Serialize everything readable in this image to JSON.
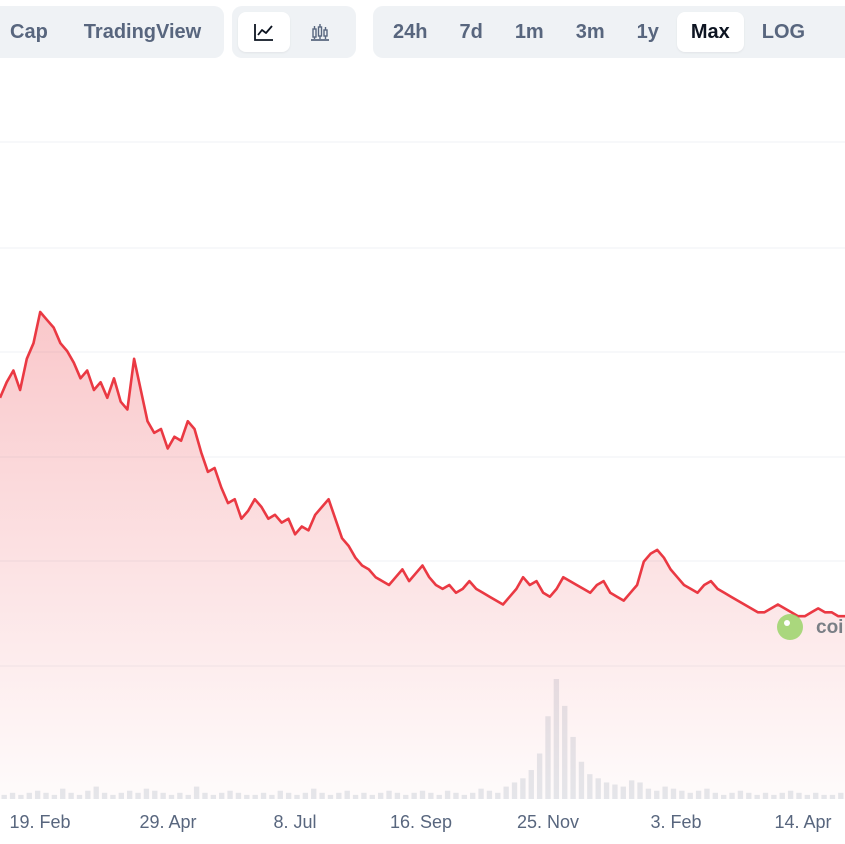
{
  "toolbar": {
    "chart_types": [
      "Cap",
      "TradingView"
    ],
    "view_icons": [
      {
        "icon": "line-chart-icon",
        "selected": true
      },
      {
        "icon": "candlestick-chart-icon",
        "selected": false
      }
    ],
    "ranges": [
      {
        "label": "24h",
        "selected": false
      },
      {
        "label": "7d",
        "selected": false
      },
      {
        "label": "1m",
        "selected": false
      },
      {
        "label": "3m",
        "selected": false
      },
      {
        "label": "1y",
        "selected": false
      },
      {
        "label": "Max",
        "selected": true
      },
      {
        "label": "LOG",
        "selected": false
      }
    ]
  },
  "watermark": {
    "text": "coi"
  },
  "colors": {
    "line": "#ea3943",
    "area": "#ea3943",
    "grid": "#eff2f5",
    "volume": "#dfe3e8",
    "selected_bg": "#ffffff",
    "group_bg": "#eff2f5"
  },
  "chart_data": {
    "type": "area",
    "title": "",
    "xlabel": "",
    "ylabel": "",
    "x_ticks": [
      "19. Feb",
      "29. Apr",
      "8. Jul",
      "16. Sep",
      "25. Nov",
      "3. Feb",
      "14. Apr"
    ],
    "grid": true,
    "ylim": [
      0,
      100
    ],
    "series": [
      {
        "values": [
          58,
          62,
          65,
          60,
          68,
          72,
          80,
          78,
          76,
          72,
          70,
          67,
          63,
          65,
          60,
          62,
          58,
          63,
          57,
          55,
          68,
          60,
          52,
          49,
          50,
          45,
          48,
          47,
          52,
          50,
          44,
          39,
          40,
          35,
          31,
          32,
          27,
          29,
          32,
          30,
          27,
          28,
          26,
          27,
          23,
          25,
          24,
          28,
          30,
          32,
          27,
          22,
          20,
          17,
          15,
          14,
          12,
          11,
          10,
          12,
          14,
          11,
          13,
          15,
          12,
          10,
          9,
          10,
          8,
          9,
          11,
          9,
          8,
          7,
          6,
          5,
          7,
          9,
          12,
          10,
          11,
          8,
          7,
          9,
          12,
          11,
          10,
          9,
          8,
          10,
          11,
          8,
          7,
          6,
          8,
          10,
          16,
          18,
          19,
          17,
          14,
          12,
          10,
          9,
          8,
          10,
          11,
          9,
          8,
          7,
          6,
          5,
          4,
          3,
          3,
          4,
          5,
          4,
          3,
          2,
          2,
          3,
          4,
          3,
          3,
          2,
          2
        ]
      }
    ],
    "volume": [
      2,
      3,
      2,
      3,
      4,
      3,
      2,
      5,
      3,
      2,
      4,
      6,
      3,
      2,
      3,
      4,
      3,
      5,
      4,
      3,
      2,
      3,
      2,
      6,
      3,
      2,
      3,
      4,
      3,
      2,
      2,
      3,
      2,
      4,
      3,
      2,
      3,
      5,
      3,
      2,
      3,
      4,
      2,
      3,
      2,
      3,
      4,
      3,
      2,
      3,
      4,
      3,
      2,
      4,
      3,
      2,
      3,
      5,
      4,
      3,
      6,
      8,
      10,
      14,
      22,
      40,
      58,
      45,
      30,
      18,
      12,
      10,
      8,
      7,
      6,
      9,
      8,
      5,
      4,
      6,
      5,
      4,
      3,
      4,
      5,
      3,
      2,
      3,
      4,
      3,
      2,
      3,
      2,
      3,
      4,
      3,
      2,
      3,
      2,
      2,
      3
    ]
  }
}
